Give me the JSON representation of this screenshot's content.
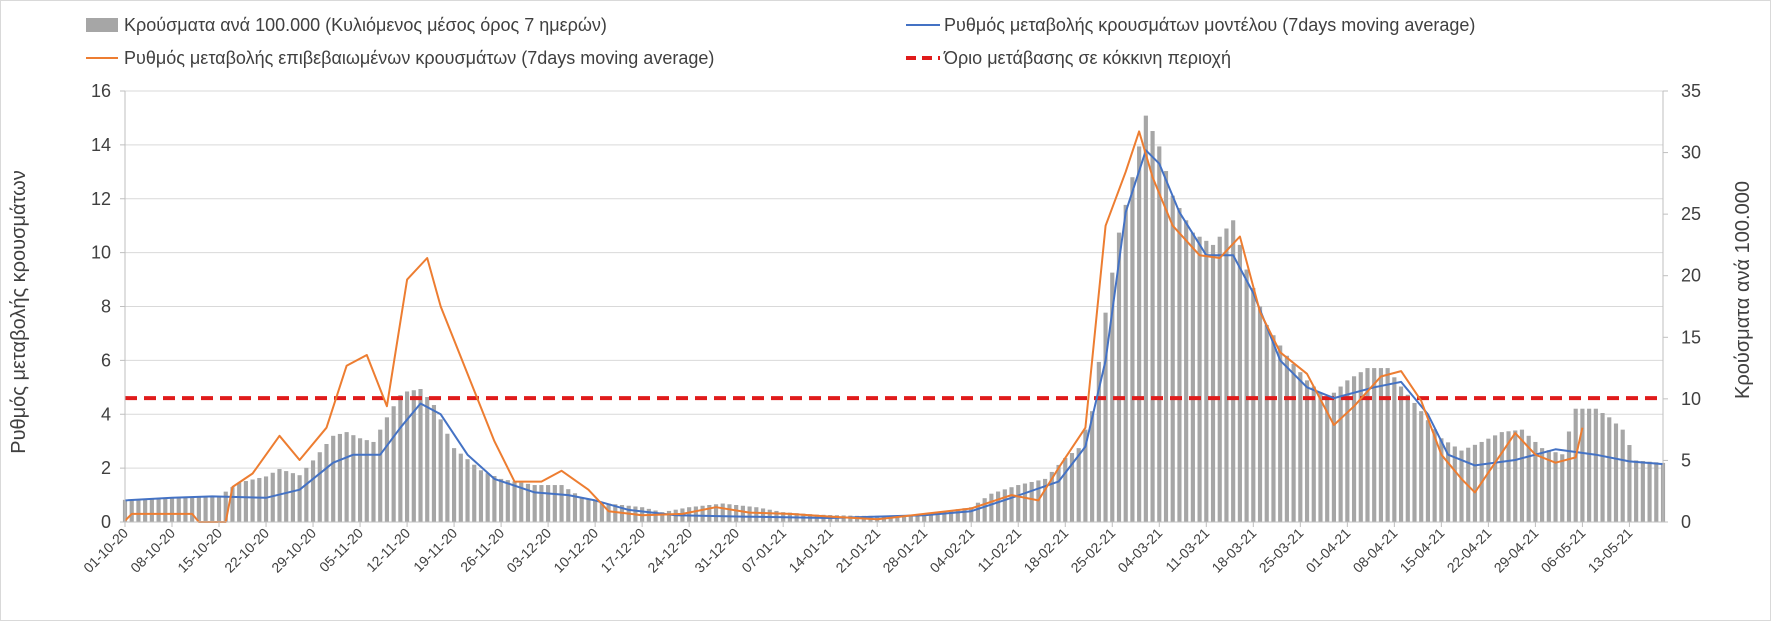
{
  "chart_data": {
    "type": "bar+line",
    "legend": {
      "bars": "Κρούσματα ανά 100.000 (Κυλιόμενος μέσος όρος 7 ημερών)",
      "model": "Ρυθμός μεταβολής κρουσμάτων μοντέλου (7days moving average)",
      "confirmed": "Ρυθμός μεταβολής επιβεβαιωμένων κρουσμάτων (7days moving average)",
      "threshold": "Όριο μετάβασης σε κόκκινη περιοχή"
    },
    "ylabel_left": "Ρυθμός μεταβολής κρουσμάτων",
    "ylabel_right": "Κρούσματα ανά 100.000",
    "ylim_left": [
      0,
      16
    ],
    "ylim_right": [
      0,
      35
    ],
    "left_ticks": [
      "0",
      "2",
      "4",
      "6",
      "8",
      "10",
      "12",
      "14",
      "16"
    ],
    "right_ticks": [
      "0",
      "5",
      "10",
      "15",
      "20",
      "25",
      "30",
      "35"
    ],
    "x_start": "2020-10-01",
    "x_end": "2021-05-18",
    "x_tick_labels": [
      "01-10-20",
      "08-10-20",
      "15-10-20",
      "22-10-20",
      "29-10-20",
      "05-11-20",
      "12-11-20",
      "19-11-20",
      "26-11-20",
      "03-12-20",
      "10-12-20",
      "17-12-20",
      "24-12-20",
      "31-12-20",
      "07-01-21",
      "14-01-21",
      "21-01-21",
      "28-01-21",
      "04-02-21",
      "11-02-21",
      "18-02-21",
      "25-02-21",
      "04-03-21",
      "11-03-21",
      "18-03-21",
      "25-03-21",
      "01-04-21",
      "08-04-21",
      "15-04-21",
      "22-04-21",
      "29-04-21",
      "06-05-21",
      "13-05-21"
    ],
    "threshold_value": 4.6,
    "bars_per_100k": [
      [
        "2020-10-01",
        1.8
      ],
      [
        "2020-10-08",
        2.0
      ],
      [
        "2020-10-15",
        2.1
      ],
      [
        "2020-10-18",
        3.2
      ],
      [
        "2020-10-22",
        3.7
      ],
      [
        "2020-10-24",
        4.3
      ],
      [
        "2020-10-27",
        3.8
      ],
      [
        "2020-10-29",
        5.0
      ],
      [
        "2020-11-01",
        7.0
      ],
      [
        "2020-11-03",
        7.3
      ],
      [
        "2020-11-05",
        6.8
      ],
      [
        "2020-11-07",
        6.5
      ],
      [
        "2020-11-09",
        8.5
      ],
      [
        "2020-11-11",
        10.3
      ],
      [
        "2020-11-12",
        10.6
      ],
      [
        "2020-11-14",
        10.8
      ],
      [
        "2020-11-16",
        9.5
      ],
      [
        "2020-11-19",
        6.0
      ],
      [
        "2020-11-23",
        4.2
      ],
      [
        "2020-11-26",
        3.5
      ],
      [
        "2020-12-01",
        3.0
      ],
      [
        "2020-12-05",
        3.0
      ],
      [
        "2020-12-08",
        2.0
      ],
      [
        "2020-12-12",
        1.5
      ],
      [
        "2020-12-17",
        1.2
      ],
      [
        "2020-12-20",
        0.8
      ],
      [
        "2020-12-24",
        1.2
      ],
      [
        "2020-12-29",
        1.5
      ],
      [
        "2021-01-03",
        1.2
      ],
      [
        "2021-01-07",
        0.8
      ],
      [
        "2021-01-12",
        0.6
      ],
      [
        "2021-01-18",
        0.5
      ],
      [
        "2021-01-24",
        0.5
      ],
      [
        "2021-01-30",
        0.8
      ],
      [
        "2021-02-04",
        1.2
      ],
      [
        "2021-02-07",
        2.3
      ],
      [
        "2021-02-11",
        3.0
      ],
      [
        "2021-02-15",
        3.5
      ],
      [
        "2021-02-18",
        5.2
      ],
      [
        "2021-02-20",
        6.0
      ],
      [
        "2021-02-22",
        9.0
      ],
      [
        "2021-02-24",
        17.0
      ],
      [
        "2021-02-26",
        23.5
      ],
      [
        "2021-02-28",
        28.0
      ],
      [
        "2021-03-02",
        33.0
      ],
      [
        "2021-03-04",
        30.5
      ],
      [
        "2021-03-06",
        26.5
      ],
      [
        "2021-03-09",
        23.5
      ],
      [
        "2021-03-12",
        22.5
      ],
      [
        "2021-03-15",
        24.5
      ],
      [
        "2021-03-17",
        20.5
      ],
      [
        "2021-03-20",
        16.0
      ],
      [
        "2021-03-23",
        13.5
      ],
      [
        "2021-03-26",
        11.5
      ],
      [
        "2021-03-29",
        10.0
      ],
      [
        "2021-04-01",
        11.5
      ],
      [
        "2021-04-04",
        12.5
      ],
      [
        "2021-04-07",
        12.5
      ],
      [
        "2021-04-09",
        11.0
      ],
      [
        "2021-04-12",
        9.0
      ],
      [
        "2021-04-15",
        6.8
      ],
      [
        "2021-04-18",
        5.8
      ],
      [
        "2021-04-21",
        6.5
      ],
      [
        "2021-04-24",
        7.3
      ],
      [
        "2021-04-27",
        7.5
      ],
      [
        "2021-04-30",
        6.0
      ],
      [
        "2021-05-03",
        5.5
      ],
      [
        "2021-05-05",
        9.2
      ],
      [
        "2021-05-08",
        9.2
      ],
      [
        "2021-05-10",
        8.5
      ],
      [
        "2021-05-12",
        7.5
      ],
      [
        "2021-05-14",
        5.0
      ],
      [
        "2021-05-18",
        4.8
      ]
    ],
    "model_rate": [
      [
        "2020-10-01",
        0.8
      ],
      [
        "2020-10-08",
        0.9
      ],
      [
        "2020-10-14",
        0.95
      ],
      [
        "2020-10-22",
        0.9
      ],
      [
        "2020-10-27",
        1.2
      ],
      [
        "2020-11-01",
        2.2
      ],
      [
        "2020-11-04",
        2.5
      ],
      [
        "2020-11-08",
        2.5
      ],
      [
        "2020-11-11",
        3.5
      ],
      [
        "2020-11-14",
        4.4
      ],
      [
        "2020-11-17",
        4.0
      ],
      [
        "2020-11-21",
        2.5
      ],
      [
        "2020-11-25",
        1.6
      ],
      [
        "2020-12-01",
        1.1
      ],
      [
        "2020-12-06",
        1.0
      ],
      [
        "2020-12-10",
        0.8
      ],
      [
        "2020-12-15",
        0.45
      ],
      [
        "2020-12-22",
        0.25
      ],
      [
        "2021-01-01",
        0.2
      ],
      [
        "2021-01-14",
        0.15
      ],
      [
        "2021-01-28",
        0.25
      ],
      [
        "2021-02-04",
        0.4
      ],
      [
        "2021-02-10",
        0.9
      ],
      [
        "2021-02-17",
        1.5
      ],
      [
        "2021-02-21",
        2.8
      ],
      [
        "2021-02-24",
        6.0
      ],
      [
        "2021-02-27",
        11.5
      ],
      [
        "2021-03-02",
        13.8
      ],
      [
        "2021-03-04",
        13.3
      ],
      [
        "2021-03-07",
        11.5
      ],
      [
        "2021-03-11",
        9.9
      ],
      [
        "2021-03-15",
        9.9
      ],
      [
        "2021-03-18",
        8.5
      ],
      [
        "2021-03-22",
        6.0
      ],
      [
        "2021-03-26",
        5.0
      ],
      [
        "2021-03-30",
        4.6
      ],
      [
        "2021-04-05",
        5.0
      ],
      [
        "2021-04-09",
        5.2
      ],
      [
        "2021-04-13",
        4.0
      ],
      [
        "2021-04-16",
        2.5
      ],
      [
        "2021-04-20",
        2.1
      ],
      [
        "2021-04-26",
        2.3
      ],
      [
        "2021-05-02",
        2.7
      ],
      [
        "2021-05-08",
        2.5
      ],
      [
        "2021-05-13",
        2.25
      ],
      [
        "2021-05-18",
        2.15
      ]
    ],
    "confirmed_rate": [
      [
        "2020-10-01",
        0.05
      ],
      [
        "2020-10-02",
        0.3
      ],
      [
        "2020-10-11",
        0.3
      ],
      [
        "2020-10-12",
        0.0
      ],
      [
        "2020-10-16",
        0.0
      ],
      [
        "2020-10-17",
        1.3
      ],
      [
        "2020-10-20",
        1.8
      ],
      [
        "2020-10-24",
        3.2
      ],
      [
        "2020-10-27",
        2.3
      ],
      [
        "2020-10-31",
        3.5
      ],
      [
        "2020-11-03",
        5.8
      ],
      [
        "2020-11-06",
        6.2
      ],
      [
        "2020-11-09",
        4.3
      ],
      [
        "2020-11-12",
        9.0
      ],
      [
        "2020-11-15",
        9.8
      ],
      [
        "2020-11-17",
        8.0
      ],
      [
        "2020-11-21",
        5.5
      ],
      [
        "2020-11-25",
        3.0
      ],
      [
        "2020-11-28",
        1.5
      ],
      [
        "2020-12-02",
        1.5
      ],
      [
        "2020-12-05",
        1.9
      ],
      [
        "2020-12-09",
        1.2
      ],
      [
        "2020-12-12",
        0.4
      ],
      [
        "2020-12-17",
        0.25
      ],
      [
        "2020-12-23",
        0.3
      ],
      [
        "2020-12-28",
        0.55
      ],
      [
        "2021-01-02",
        0.35
      ],
      [
        "2021-01-08",
        0.3
      ],
      [
        "2021-01-14",
        0.2
      ],
      [
        "2021-01-21",
        0.1
      ],
      [
        "2021-01-28",
        0.3
      ],
      [
        "2021-02-04",
        0.5
      ],
      [
        "2021-02-10",
        1.0
      ],
      [
        "2021-02-14",
        0.8
      ],
      [
        "2021-02-17",
        2.0
      ],
      [
        "2021-02-21",
        3.5
      ],
      [
        "2021-02-24",
        11.0
      ],
      [
        "2021-02-27",
        13.0
      ],
      [
        "2021-03-01",
        14.5
      ],
      [
        "2021-03-03",
        12.8
      ],
      [
        "2021-03-06",
        11.0
      ],
      [
        "2021-03-10",
        9.9
      ],
      [
        "2021-03-13",
        9.8
      ],
      [
        "2021-03-16",
        10.6
      ],
      [
        "2021-03-19",
        7.8
      ],
      [
        "2021-03-22",
        6.3
      ],
      [
        "2021-03-26",
        5.5
      ],
      [
        "2021-03-30",
        3.6
      ],
      [
        "2021-04-02",
        4.3
      ],
      [
        "2021-04-06",
        5.4
      ],
      [
        "2021-04-09",
        5.6
      ],
      [
        "2021-04-12",
        4.5
      ],
      [
        "2021-04-15",
        2.5
      ],
      [
        "2021-04-18",
        1.6
      ],
      [
        "2021-04-20",
        1.1
      ],
      [
        "2021-04-23",
        2.2
      ],
      [
        "2021-04-26",
        3.3
      ],
      [
        "2021-04-29",
        2.5
      ],
      [
        "2021-05-02",
        2.2
      ],
      [
        "2021-05-05",
        2.4
      ],
      [
        "2021-05-06",
        3.5
      ]
    ]
  }
}
